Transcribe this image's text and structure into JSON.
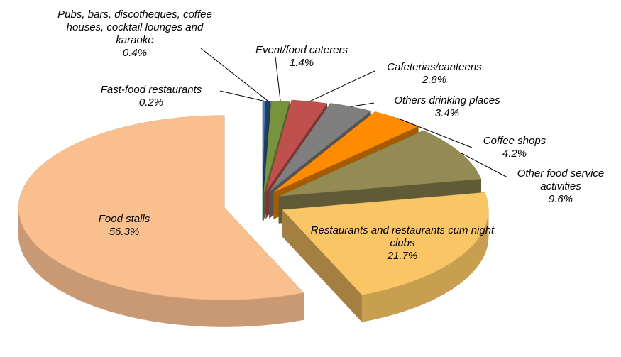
{
  "chart_data": {
    "type": "pie3d",
    "categories": [
      "Fast-food restaurants",
      "Pubs, bars, discotheques, coffee houses, cocktail lounges and karaoke",
      "Event/food caterers",
      "Cafeterias/canteens",
      "Others drinking places",
      "Coffee shops",
      "Other food service activities",
      "Restaurants and restaurants cum night clubs",
      "Food stalls"
    ],
    "values": [
      0.2,
      0.4,
      1.4,
      2.8,
      3.4,
      4.2,
      9.6,
      21.7,
      56.3
    ],
    "value_labels": [
      "0.2%",
      "0.4%",
      "1.4%",
      "2.8%",
      "3.4%",
      "4.2%",
      "9.6%",
      "21.7%",
      "56.3%"
    ],
    "colors": [
      "#4a7ebb",
      "#1f3d66",
      "#77933c",
      "#c0504d",
      "#7f7f7f",
      "#ff8c00",
      "#948a54",
      "#fac564",
      "#fabf8f"
    ]
  }
}
